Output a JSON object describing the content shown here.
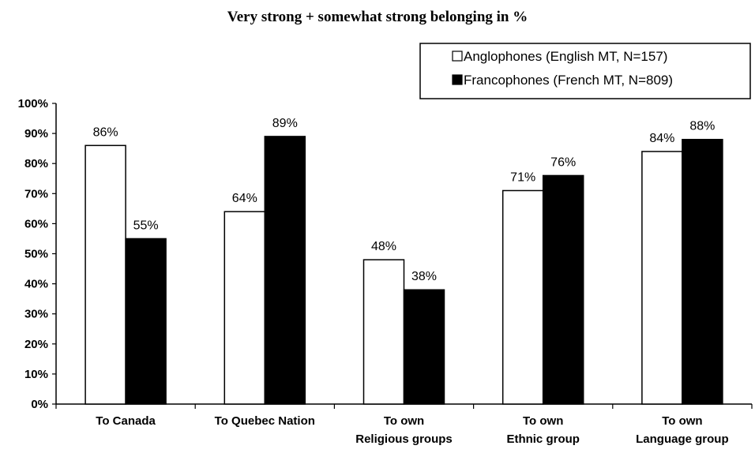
{
  "chart_data": {
    "type": "bar",
    "title": "Very strong + somewhat strong belonging in %",
    "xlabel": "",
    "ylabel": "",
    "ylim": [
      0,
      100
    ],
    "yticks": [
      "0%",
      "10%",
      "20%",
      "30%",
      "40%",
      "50%",
      "60%",
      "70%",
      "80%",
      "90%",
      "100%"
    ],
    "categories": [
      [
        "To Canada"
      ],
      [
        "To Quebec Nation"
      ],
      [
        "To own",
        "Religious groups"
      ],
      [
        "To own",
        "Ethnic group"
      ],
      [
        "To own",
        "Language group"
      ]
    ],
    "series": [
      {
        "name": "Anglophones (English MT, N=157)",
        "color": "#ffffff",
        "values": [
          86,
          64,
          48,
          71,
          84
        ],
        "labels": [
          "86%",
          "64%",
          "48%",
          "71%",
          "84%"
        ]
      },
      {
        "name": "Francophones (French MT, N=809)",
        "color": "#000000",
        "values": [
          55,
          89,
          38,
          76,
          88
        ],
        "labels": [
          "55%",
          "89%",
          "38%",
          "76%",
          "88%"
        ]
      }
    ],
    "legend_position": "top-right",
    "grid": false
  }
}
